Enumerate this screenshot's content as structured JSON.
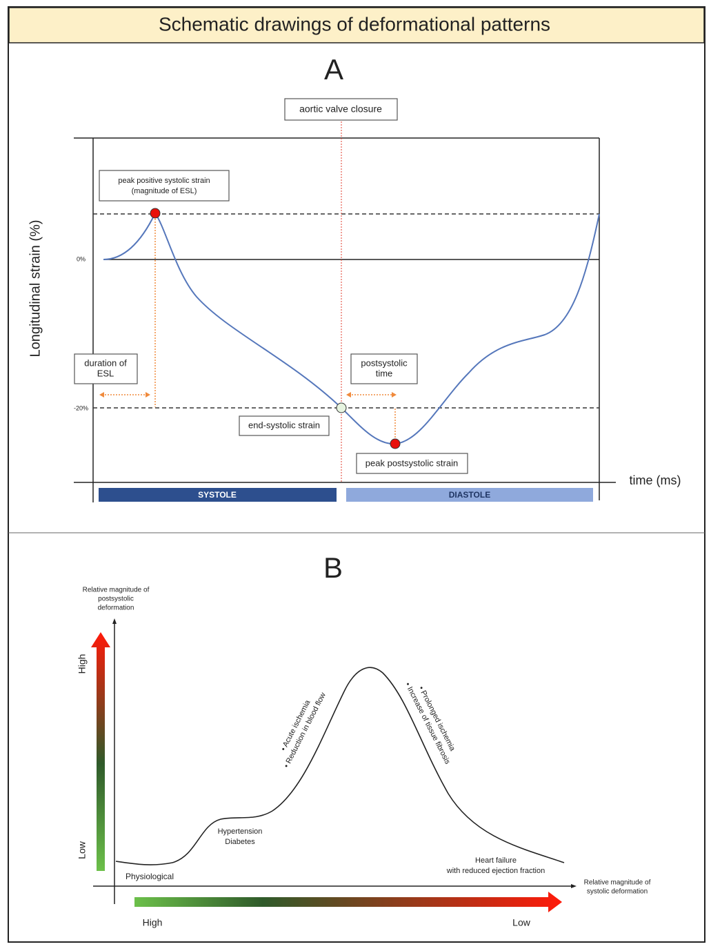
{
  "header": {
    "title": "Schematic drawings of deformational patterns"
  },
  "panel_a": {
    "label": "A",
    "y_axis_label": "Longitudinal strain (%)",
    "x_axis_label": "time (ms)",
    "tick_labels": [
      "0%",
      "-20%"
    ],
    "aortic_valve_closure": "aortic valve closure",
    "peak_positive": [
      "peak positive systolic strain",
      "(magnitude of ESL)"
    ],
    "duration_esl": [
      "duration of",
      "ESL"
    ],
    "postsystolic_time": [
      "postsystolic",
      "time"
    ],
    "end_systolic": "end-systolic strain",
    "peak_postsystolic": "peak postsystolic strain",
    "phases": [
      "SYSTOLE",
      "DIASTOLE"
    ]
  },
  "panel_b": {
    "label": "B",
    "y_axis_label": [
      "Relative magnitude of",
      "postsystolic",
      "deformation"
    ],
    "x_axis_label": [
      "Relative magnitude of",
      "systolic deformation"
    ],
    "y_high": "High",
    "y_low": "Low",
    "x_high": "High",
    "x_low": "Low",
    "physiological": "Physiological",
    "hypertension": [
      "Hypertension",
      "Diabetes"
    ],
    "heart_failure": [
      "Heart failure",
      "with reduced ejection fraction"
    ],
    "rising_notes": [
      "• Acute ischemia",
      "• Reduction in blood flow"
    ],
    "falling_notes": [
      "• Prolonged ischemia",
      "• Increase of tissue fibrosis"
    ]
  }
}
